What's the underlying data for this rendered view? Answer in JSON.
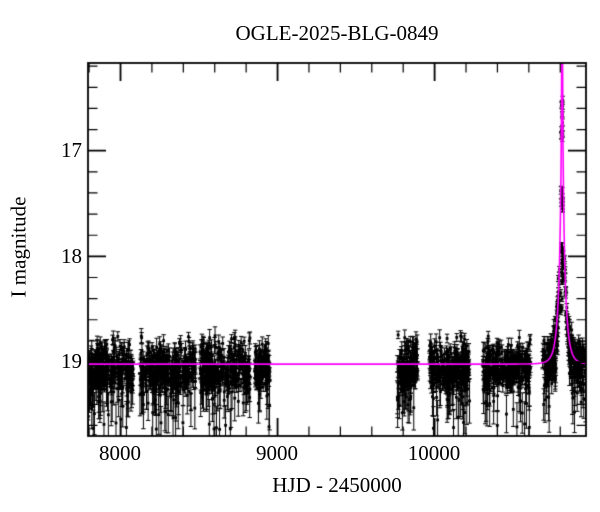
{
  "chart_data": {
    "type": "scatter",
    "title": "OGLE-2025-BLG-0849",
    "xlabel": "HJD - 2450000",
    "ylabel": "I magnitude",
    "xlim": [
      7793,
      10964
    ],
    "ylim": [
      19.7,
      16.17
    ],
    "y_axis_inverted": true,
    "grid": false,
    "legend": null,
    "x_major_ticks": [
      "8000",
      "9000",
      "10000"
    ],
    "x_major_values": [
      8000,
      9000,
      10000
    ],
    "x_minor_step": 200,
    "y_major_ticks": [
      "17",
      "18",
      "19"
    ],
    "y_major_values": [
      17,
      18,
      19
    ],
    "y_minor_step": 0.2,
    "colors": {
      "data": "#000000",
      "model": "#ff00ff",
      "frame": "#000000",
      "background": "#ffffff"
    },
    "baseline_mag": 19.02,
    "model": {
      "type": "paczynski",
      "I0": 19.02,
      "t0": 10812,
      "tE": 38,
      "u0": 0.012
    },
    "seasons": [
      {
        "t_start": 7793,
        "t_end": 8082,
        "n": 300,
        "mag_mean": 19.07,
        "mag_sigma": 0.125
      },
      {
        "t_start": 8124,
        "t_end": 8478,
        "n": 340,
        "mag_mean": 19.07,
        "mag_sigma": 0.125
      },
      {
        "t_start": 8506,
        "t_end": 8825,
        "n": 320,
        "mag_mean": 19.07,
        "mag_sigma": 0.125
      },
      {
        "t_start": 8857,
        "t_end": 8950,
        "n": 110,
        "mag_mean": 19.06,
        "mag_sigma": 0.115
      },
      {
        "t_start": 9762,
        "t_end": 9892,
        "n": 150,
        "mag_mean": 19.07,
        "mag_sigma": 0.15
      },
      {
        "t_start": 9968,
        "t_end": 10228,
        "n": 280,
        "mag_mean": 19.07,
        "mag_sigma": 0.125
      },
      {
        "t_start": 10308,
        "t_end": 10610,
        "n": 300,
        "mag_mean": 19.06,
        "mag_sigma": 0.12
      },
      {
        "t_start": 10688,
        "t_end": 10962,
        "n": 290,
        "mag_mean": 19.05,
        "mag_sigma": 0.12,
        "follows_model": true,
        "exclude_near_t0_days": 16
      }
    ],
    "event_clumps": [
      {
        "t": 10811,
        "n": 7,
        "mag_min": 16.52,
        "mag_max": 16.68
      },
      {
        "t": 10812,
        "n": 7,
        "mag_min": 16.73,
        "mag_max": 16.89
      },
      {
        "t": 10810,
        "n": 12,
        "mag_min": 17.35,
        "mag_max": 17.57
      },
      {
        "t": 10813,
        "n": 9,
        "mag_min": 17.86,
        "mag_max": 18.05
      },
      {
        "t": 10814,
        "n": 8,
        "mag_min": 18.06,
        "mag_max": 18.26
      },
      {
        "t": 10808,
        "n": 6,
        "mag_min": 18.33,
        "mag_max": 18.55
      }
    ],
    "seed": 20250849
  }
}
